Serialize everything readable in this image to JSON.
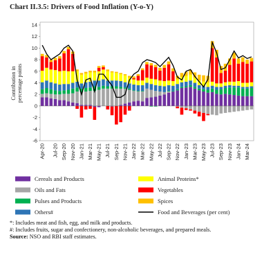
{
  "chart_data": {
    "type": "stacked_bar_line",
    "title": "Chart II.3.5: Drivers of Food Inflation (Y-o-Y)",
    "ylabel": [
      "Contribution in",
      "percentage points"
    ],
    "categories": [
      "Apr-20",
      null,
      null,
      "Jul-20",
      null,
      "Sep-20",
      null,
      "Nov-20",
      null,
      "Jan-21",
      null,
      "Mar-21",
      null,
      "May-21",
      null,
      "Jul-21",
      null,
      "Sep-21",
      null,
      "Nov-21",
      null,
      "Jan-22",
      null,
      "Mar-22",
      null,
      "May-22",
      null,
      "Jul-22",
      null,
      "Sep-22",
      null,
      "Nov-22",
      null,
      "Jan-23",
      null,
      "Mar-23",
      null,
      "May-23",
      null,
      "Jul-23",
      null,
      "Sep-23",
      null,
      "Nov-23",
      null,
      "Jan-24",
      null,
      "Mar-24",
      null
    ],
    "ylim": [
      -6,
      14
    ],
    "yticks": [
      -6,
      -4,
      -2,
      0,
      2,
      4,
      6,
      8,
      10,
      12,
      14
    ],
    "series": [
      {
        "name": "Cereals and Products",
        "color": "#7030a0",
        "values": [
          1.5,
          1.5,
          1.3,
          1.2,
          1.0,
          1.0,
          0.8,
          0.6,
          0.5,
          0.2,
          0.2,
          0.2,
          -0.2,
          -0.2,
          0,
          0,
          -0.1,
          0,
          0.2,
          0.4,
          0.6,
          0.8,
          0.9,
          0.8,
          1.4,
          1.5,
          1.6,
          1.8,
          2.0,
          2.3,
          2.5,
          2.7,
          3.1,
          3.2,
          3.3,
          3.0,
          2.7,
          2.5,
          2.3,
          2.4,
          2.1,
          2.0,
          2.1,
          2.0,
          1.9,
          1.8,
          1.7,
          1.7,
          1.7
        ]
      },
      {
        "name": "Oils and Fats",
        "color": "#a6a6a6",
        "values": [
          0.6,
          0.7,
          0.8,
          0.8,
          1.0,
          1.1,
          1.3,
          1.6,
          2.0,
          2.2,
          2.3,
          2.4,
          2.6,
          2.8,
          3.0,
          3.0,
          3.0,
          3.0,
          2.8,
          2.6,
          2.2,
          1.8,
          1.6,
          1.7,
          1.6,
          1.3,
          1.0,
          0.7,
          0.4,
          0.2,
          0.0,
          -0.1,
          -0.3,
          -0.4,
          -0.6,
          -0.8,
          -1.0,
          -1.2,
          -1.4,
          -1.5,
          -1.6,
          -1.3,
          -1.2,
          -1.1,
          -1.0,
          -0.9,
          -0.8,
          -0.7,
          -0.6
        ]
      },
      {
        "name": "Pulses and Products",
        "color": "#00b050",
        "values": [
          0.8,
          0.9,
          0.8,
          0.7,
          0.6,
          0.6,
          0.7,
          0.8,
          0.7,
          0.6,
          0.6,
          0.6,
          0.8,
          0.5,
          0.5,
          0.4,
          0.4,
          0.4,
          0.3,
          0.2,
          0.2,
          0.1,
          0.1,
          0.1,
          0.0,
          -0.1,
          -0.1,
          0.0,
          0.0,
          0.1,
          0.1,
          0.2,
          0.2,
          0.2,
          0.3,
          0.3,
          0.3,
          0.4,
          0.5,
          0.6,
          0.7,
          0.9,
          1.0,
          1.2,
          1.3,
          1.4,
          1.3,
          1.3,
          1.4
        ]
      },
      {
        "name": "Others#",
        "color": "#2e75b6",
        "values": [
          1.2,
          1.3,
          1.2,
          1.2,
          1.1,
          1.1,
          1.0,
          1.0,
          1.0,
          0.9,
          1.0,
          1.0,
          1.0,
          1.1,
          1.1,
          1.0,
          1.0,
          1.0,
          1.0,
          0.9,
          0.9,
          1.0,
          1.0,
          1.0,
          1.0,
          1.0,
          1.0,
          1.0,
          1.0,
          1.0,
          0.9,
          0.9,
          0.8,
          0.8,
          0.8,
          0.7,
          0.6,
          0.5,
          0.5,
          0.5,
          0.5,
          0.4,
          0.4,
          0.4,
          0.3,
          0.3,
          0.3,
          0.3,
          0.3
        ]
      },
      {
        "name": "Animal Proteins*",
        "color": "#ffff00",
        "values": [
          2.0,
          2.2,
          2.2,
          2.3,
          2.3,
          2.3,
          2.2,
          2.0,
          1.8,
          1.5,
          1.5,
          1.6,
          1.4,
          1.6,
          1.7,
          1.6,
          1.4,
          1.3,
          1.2,
          1.2,
          1.0,
          0.9,
          0.8,
          0.8,
          0.9,
          0.9,
          1.0,
          0.9,
          0.9,
          0.8,
          0.8,
          0.8,
          0.9,
          1.0,
          1.0,
          0.9,
          0.8,
          0.8,
          0.8,
          0.7,
          0.6,
          0.6,
          0.6,
          0.6,
          0.7,
          0.8,
          0.7,
          0.7,
          0.7
        ]
      },
      {
        "name": "Vegetables",
        "color": "#ff0000",
        "values": [
          2.5,
          1.8,
          1.3,
          1.7,
          2.2,
          3.0,
          3.8,
          3.0,
          -0.5,
          -2.0,
          -0.6,
          -0.5,
          -2.2,
          0.6,
          0.4,
          -0.6,
          -1.5,
          -3.2,
          -2.8,
          -1.5,
          -0.8,
          0.2,
          0.8,
          1.8,
          2.3,
          2.3,
          2.1,
          1.7,
          2.3,
          2.8,
          1.7,
          -0.3,
          -1.2,
          -0.3,
          -0.2,
          -0.5,
          -0.8,
          -1.4,
          -0.2,
          5.8,
          4.5,
          1.8,
          2.0,
          2.9,
          4.0,
          3.0,
          3.6,
          3.3,
          3.6
        ]
      },
      {
        "name": "Spices",
        "color": "#ffc000",
        "values": [
          0.4,
          0.4,
          0.4,
          0.4,
          0.4,
          0.4,
          0.4,
          0.4,
          0.3,
          0.3,
          0.3,
          0.3,
          0.3,
          0.3,
          0.3,
          0.3,
          0.2,
          0.2,
          0.2,
          0.2,
          0.3,
          0.3,
          0.3,
          0.3,
          0.4,
          0.4,
          0.4,
          0.5,
          0.5,
          0.5,
          0.5,
          0.6,
          0.7,
          0.7,
          0.8,
          0.9,
          1.0,
          1.1,
          1.1,
          1.2,
          1.3,
          1.2,
          1.2,
          1.1,
          1.0,
          0.9,
          0.8,
          0.7,
          0.6
        ]
      },
      {
        "name": "Food and Beverages (per cent)",
        "color": "#000000",
        "kind": "line",
        "values": [
          10.5,
          9.0,
          8.0,
          8.5,
          9.0,
          10.0,
          10.5,
          9.5,
          4.5,
          2.0,
          4.5,
          4.8,
          2.5,
          5.5,
          5.5,
          4.5,
          3.5,
          1.5,
          1.5,
          2.0,
          4.5,
          5.5,
          6.0,
          7.5,
          8.0,
          7.8,
          7.5,
          6.8,
          7.6,
          8.4,
          7.0,
          5.0,
          4.5,
          6.0,
          6.3,
          5.1,
          4.2,
          3.3,
          4.6,
          11.0,
          9.2,
          6.3,
          6.6,
          8.0,
          9.5,
          8.3,
          8.7,
          8.2,
          8.5
        ]
      }
    ]
  },
  "notes": [
    "*: Includes meat and fish, egg, and milk and products.",
    "#: Includes fruits, sugar and confectionery, non-alcoholic beverages, and prepared meals."
  ],
  "source": {
    "label": "Source:",
    "text": "NSO and RBI staff estimates."
  }
}
